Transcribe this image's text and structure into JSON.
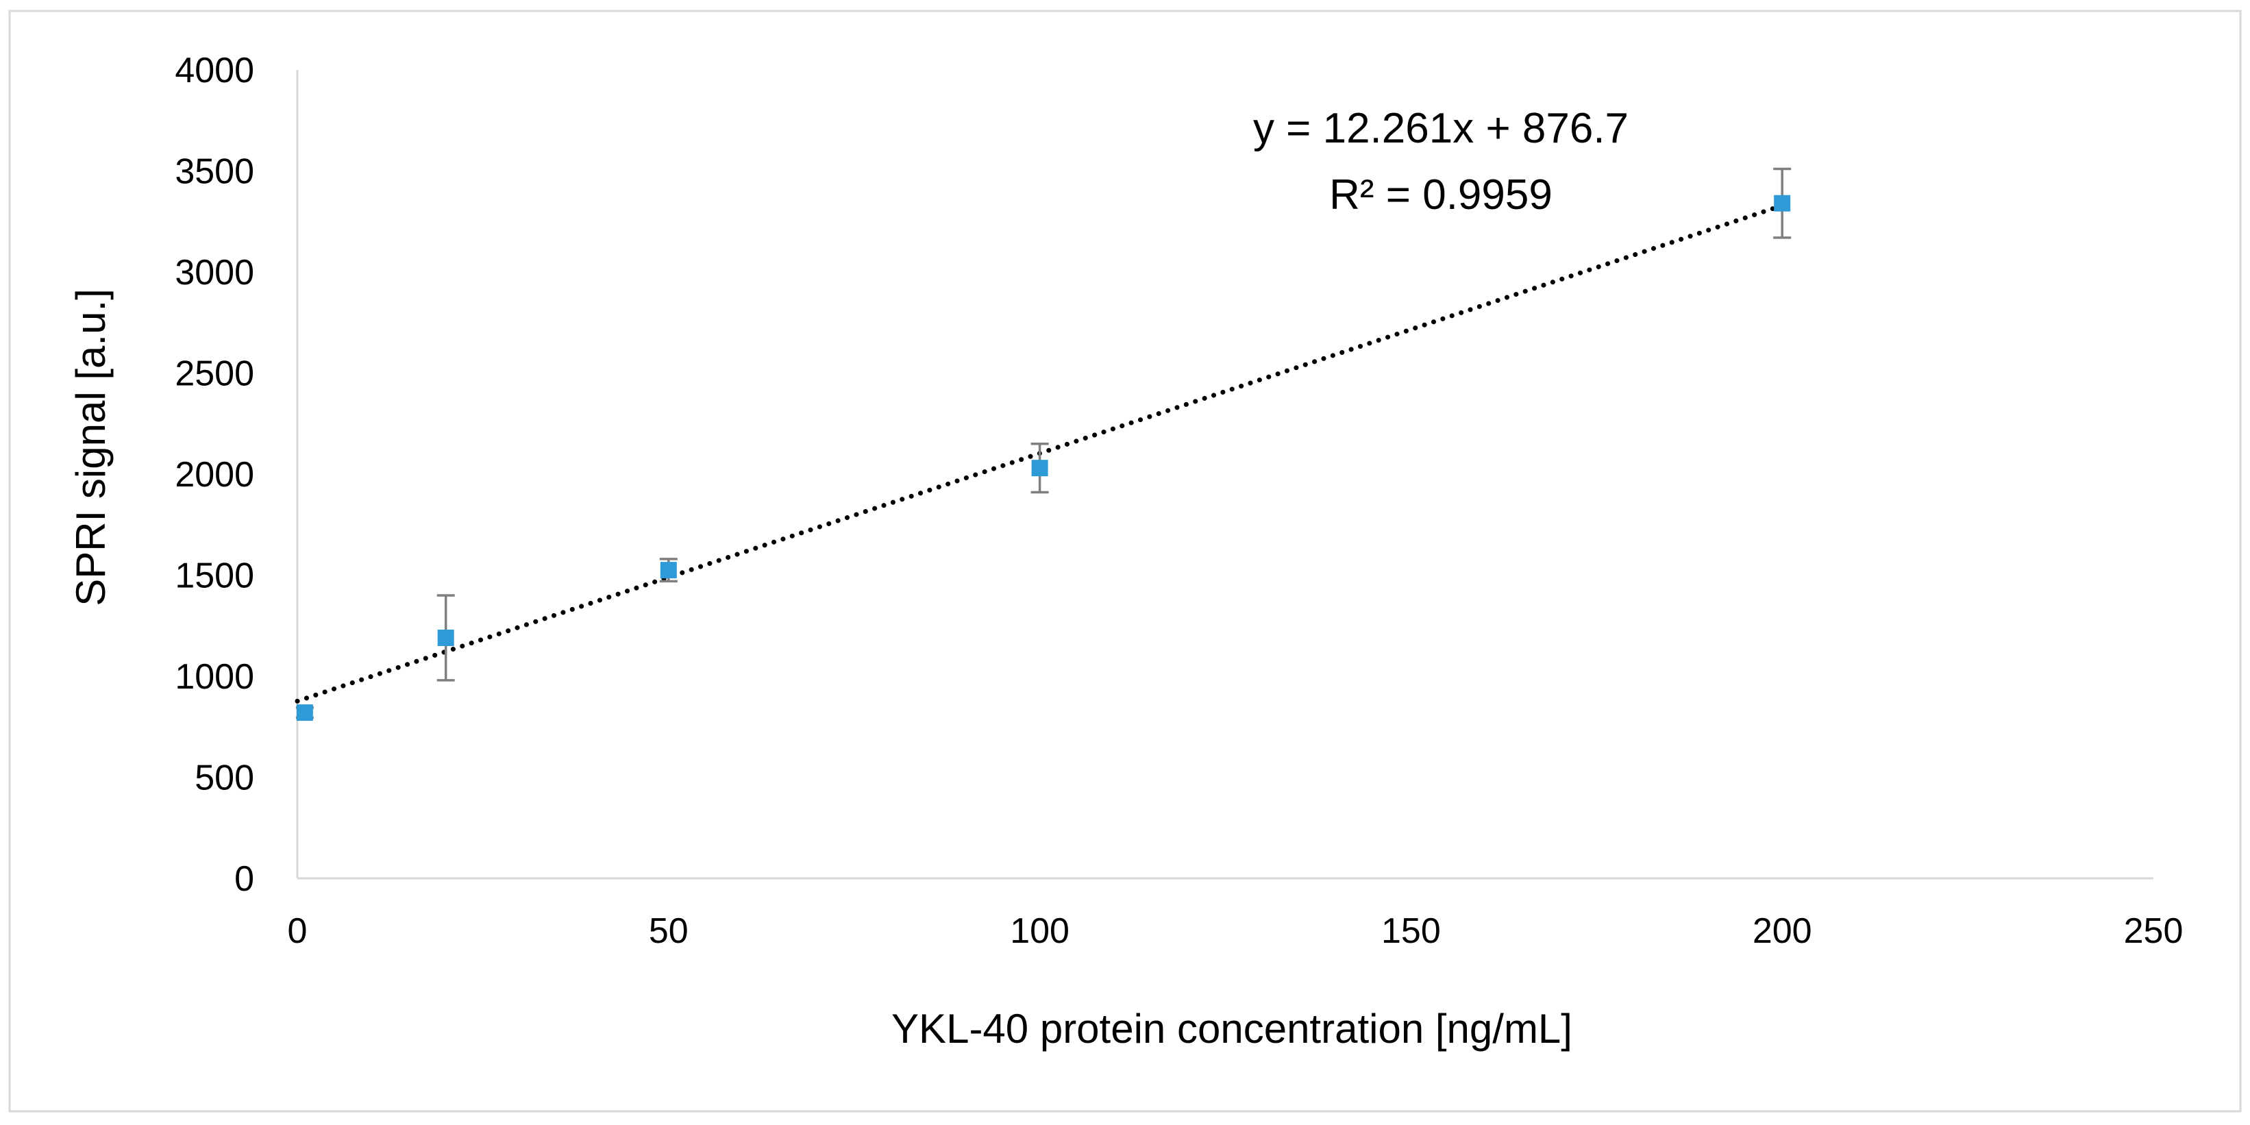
{
  "chart_data": {
    "type": "scatter",
    "title": "",
    "xlabel": "YKL-40 protein concentration [ng/mL]",
    "ylabel": "SPRI signal [a.u.]",
    "xlim": [
      0,
      250
    ],
    "ylim": [
      0,
      4000
    ],
    "xticks": [
      "0",
      "50",
      "100",
      "150",
      "200",
      "250"
    ],
    "yticks": [
      "0",
      "500",
      "1000",
      "1500",
      "2000",
      "2500",
      "3000",
      "3500",
      "4000"
    ],
    "grid": false,
    "legend": "none",
    "series": [
      {
        "name": "SPRI signal",
        "color": "#2e9bd6",
        "marker": "square",
        "points": [
          {
            "x": 1,
            "y": 820,
            "err": 25
          },
          {
            "x": 20,
            "y": 1190,
            "err": 210
          },
          {
            "x": 50,
            "y": 1525,
            "err": 55
          },
          {
            "x": 100,
            "y": 2030,
            "err": 120
          },
          {
            "x": 200,
            "y": 3340,
            "err": 170
          }
        ]
      }
    ],
    "trendline": {
      "type": "linear",
      "slope": 12.261,
      "intercept": 876.7,
      "x_range": [
        0,
        200
      ],
      "style": "dotted",
      "color": "#000000",
      "equation_label": "y = 12.261x + 876.7",
      "r2_label": "R² = 0.9959"
    },
    "errorbar_color": "#7f7f7f",
    "axis_color": "#d9d9d9"
  }
}
